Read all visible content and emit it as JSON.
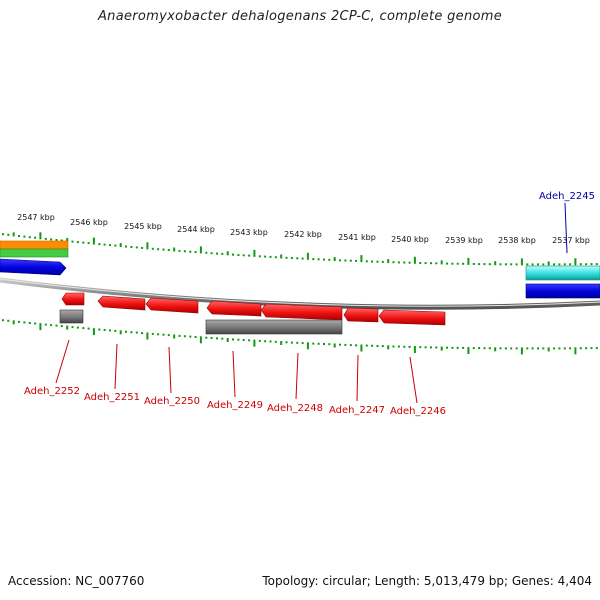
{
  "title": "Anaeromyxobacter dehalogenans 2CP-C, complete genome",
  "ticks": [
    "2547 kbp",
    "2546 kbp",
    "2545 kbp",
    "2544 kbp",
    "2543 kbp",
    "2542 kbp",
    "2541 kbp",
    "2540 kbp",
    "2539 kbp",
    "2538 kbp",
    "2537 kbp"
  ],
  "gene_labels_forward": [
    "Adeh_2245"
  ],
  "gene_labels_reverse": [
    "Adeh_2252",
    "Adeh_2251",
    "Adeh_2250",
    "Adeh_2249",
    "Adeh_2248",
    "Adeh_2247",
    "Adeh_2246"
  ],
  "footer": {
    "accession": "Accession: NC_007760",
    "summary": "Topology: circular; Length: 5,013,479 bp; Genes: 4,404"
  },
  "colors": {
    "reverse_cds": "#ee1111",
    "reverse_gene": "#777777",
    "forward_cds": "#0000dd",
    "forward_gene_cyan": "#33dddd",
    "ticks": "#119911",
    "label_reverse": "#cc0000",
    "label_forward": "#0000aa",
    "orange": "#ff8c00",
    "green": "#44cc44"
  }
}
